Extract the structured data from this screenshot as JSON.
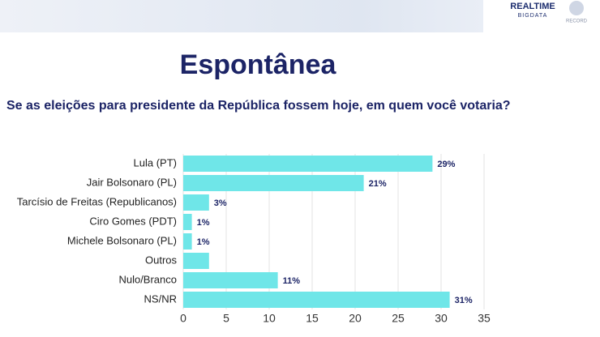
{
  "chart_data": {
    "type": "barh",
    "title": "Espontânea",
    "subtitle": "Se as eleições para presidente da República fossem hoje, em quem você votaria?",
    "categories": [
      "Lula (PT)",
      "Jair Bolsonaro (PL)",
      "Tarcísio de Freitas (Republicanos)",
      "Ciro Gomes (PDT)",
      "Michele Bolsonaro (PL)",
      "Outros",
      "Nulo/Branco",
      "NS/NR"
    ],
    "values": [
      29,
      21,
      3,
      1,
      1,
      3,
      11,
      31
    ],
    "value_labels": [
      "29%",
      "21%",
      "3%",
      "1%",
      "1%",
      null,
      "11%",
      "31%"
    ],
    "color": "#6fe6e8",
    "xlim": [
      0,
      35
    ],
    "xticks": [
      0,
      5,
      10,
      15,
      20,
      25,
      30,
      35
    ],
    "grid": true
  },
  "logo": {
    "brand": "REALTIME",
    "sub": "BIGDATA",
    "partner": "RECORD"
  }
}
